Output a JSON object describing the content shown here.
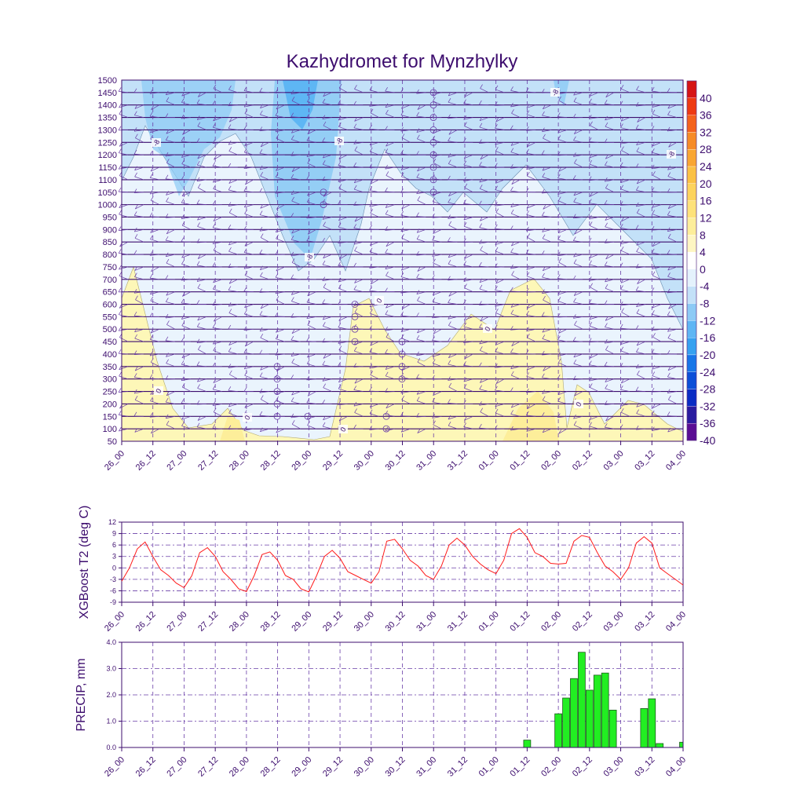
{
  "title": "Kazhydromet for Mynzhylky",
  "x_tick_labels": [
    "26_00",
    "26_12",
    "27_00",
    "27_12",
    "28_00",
    "28_12",
    "29_00",
    "29_12",
    "30_00",
    "30_12",
    "31_00",
    "31_12",
    "01_00",
    "01_12",
    "02_00",
    "02_12",
    "03_00",
    "03_12",
    "04_00"
  ],
  "colors": {
    "text": "#3d0d6e",
    "frame": "#3d0d6e",
    "grid": "#6a3ea8",
    "t2_line": "#ff1a1a",
    "precip_bar": "#22ee22",
    "precip_edge": "#1c5c1c",
    "warm_fill": "#fdf7b8",
    "cold_fill_1": "#eaf4fd",
    "cold_fill_2": "#c3e1f8",
    "cold_fill_3": "#8ccaf5",
    "cold_fill_4": "#5eb6f4"
  },
  "chart_data": [
    {
      "type": "heatmap",
      "name": "vertical-profile",
      "title": "Kazhydromet for Mynzhylky",
      "y_tick_labels": [
        "1500",
        "1450",
        "1400",
        "1350",
        "1300",
        "1250",
        "1200",
        "1150",
        "1100",
        "1050",
        "1000",
        "950",
        "900",
        "850",
        "800",
        "750",
        "700",
        "650",
        "600",
        "550",
        "500",
        "450",
        "400",
        "350",
        "300",
        "250",
        "200",
        "150",
        "100",
        "50"
      ],
      "ylim": [
        50,
        1500
      ],
      "x_steps": 18,
      "colorbar_labels": [
        "40",
        "36",
        "32",
        "28",
        "24",
        "20",
        "16",
        "12",
        "8",
        "4",
        "0",
        "-4",
        "-8",
        "-12",
        "-16",
        "-20",
        "-24",
        "-28",
        "-32",
        "-36",
        "-40"
      ],
      "colorbar_colors": [
        "#d61414",
        "#ee3a12",
        "#f4621c",
        "#f68b26",
        "#f9a632",
        "#fbc144",
        "#fdd35c",
        "#fee27a",
        "#fdee9a",
        "#fef6c2",
        "#ffffff",
        "#e4f2fc",
        "#c3e1f8",
        "#8ccaf5",
        "#5eb6f4",
        "#36a1f0",
        "#1876e8",
        "#0c4fd8",
        "#0a2cc4",
        "#2a1ba0",
        "#5a0c94"
      ],
      "contour_labels": [
        "-8",
        "-8",
        "-8",
        "-8",
        "-8",
        "0",
        "0",
        "0",
        "0",
        "0",
        "0"
      ]
    },
    {
      "type": "line",
      "name": "t2",
      "ylabel": "XGBoost T2 (deg C)",
      "xlabel": "",
      "ylim": [
        -9,
        12
      ],
      "y_ticks": [
        "12",
        "9",
        "6",
        "3",
        "0",
        "-3",
        "-6",
        "-9"
      ],
      "x": [
        0,
        0.25,
        0.5,
        0.75,
        1,
        1.25,
        1.5,
        1.75,
        2,
        2.25,
        2.5,
        2.75,
        3,
        3.25,
        3.5,
        3.75,
        4,
        4.25,
        4.5,
        4.75,
        5,
        5.25,
        5.5,
        5.75,
        6,
        6.25,
        6.5,
        6.75,
        7,
        7.25,
        7.5,
        7.75,
        8,
        8.25,
        8.5,
        8.75,
        9,
        9.25,
        9.5,
        9.75,
        10,
        10.25,
        10.5,
        10.75,
        11,
        11.25,
        11.5,
        11.75,
        12,
        12.25,
        12.5,
        12.75,
        13,
        13.25,
        13.5,
        13.75,
        14,
        14.25,
        14.5,
        14.75,
        15,
        15.25,
        15.5,
        15.75,
        16,
        16.25,
        16.5,
        16.75,
        17,
        17.25,
        17.5,
        17.75,
        18
      ],
      "values": [
        -3.5,
        0,
        5,
        6.8,
        3,
        -0.5,
        -2,
        -4,
        -5.2,
        -2,
        4,
        5.3,
        3,
        -1,
        -3,
        -5.5,
        -6.2,
        -2,
        3.5,
        4.2,
        2,
        -2,
        -3,
        -5.5,
        -6.3,
        -2,
        3,
        4.6,
        2.5,
        -1,
        -2,
        -3,
        -4,
        -1,
        7,
        7.5,
        5,
        2,
        0.5,
        -2,
        -3,
        0.5,
        6,
        7.8,
        6,
        3,
        1,
        -0.5,
        -1.5,
        2,
        9,
        10.3,
        8,
        4,
        3,
        1.2,
        1,
        1.2,
        7,
        8.5,
        8,
        4,
        0.5,
        -1,
        -3,
        0,
        6.5,
        8.2,
        6.5,
        0,
        -1.5,
        -3,
        -4.5
      ]
    },
    {
      "type": "bar",
      "name": "precip",
      "ylabel": "PRECIP, mm",
      "xlabel": "",
      "ylim": [
        0,
        4
      ],
      "y_ticks": [
        "4.0",
        "3.0",
        "2.0",
        "1.0",
        "0.0"
      ],
      "x": [
        13,
        14,
        14.25,
        14.5,
        14.75,
        15,
        15.25,
        15.5,
        15.75,
        16,
        16.75,
        17,
        17.25,
        18
      ],
      "values": [
        0.28,
        1.28,
        1.88,
        2.62,
        3.62,
        2.18,
        2.75,
        2.83,
        1.42,
        0,
        1.48,
        1.85,
        0.15,
        0.2
      ]
    }
  ]
}
